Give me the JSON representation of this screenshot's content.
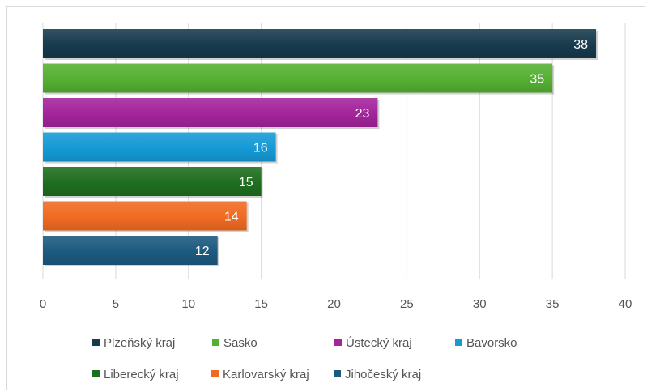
{
  "chart_data": {
    "type": "bar",
    "orientation": "horizontal",
    "title": "",
    "xlabel": "",
    "ylabel": "",
    "xlim": [
      0,
      40
    ],
    "x_ticks": [
      0,
      5,
      10,
      15,
      20,
      25,
      30,
      35,
      40
    ],
    "grid": "vertical",
    "legend_position": "bottom",
    "data_labels": true,
    "series": [
      {
        "name": "Plzeňský kraj",
        "value": 38,
        "color": "#173a4d"
      },
      {
        "name": "Sasko",
        "value": 35,
        "color": "#55b032"
      },
      {
        "name": "Ústecký kraj",
        "value": 23,
        "color": "#a3249b"
      },
      {
        "name": "Bavorsko",
        "value": 16,
        "color": "#159ad6"
      },
      {
        "name": "Liberecký kraj",
        "value": 15,
        "color": "#1f6e1f"
      },
      {
        "name": "Karlovarský kraj",
        "value": 14,
        "color": "#ef6b22"
      },
      {
        "name": "Jihočeský kraj",
        "value": 12,
        "color": "#1c5a80"
      }
    ]
  }
}
